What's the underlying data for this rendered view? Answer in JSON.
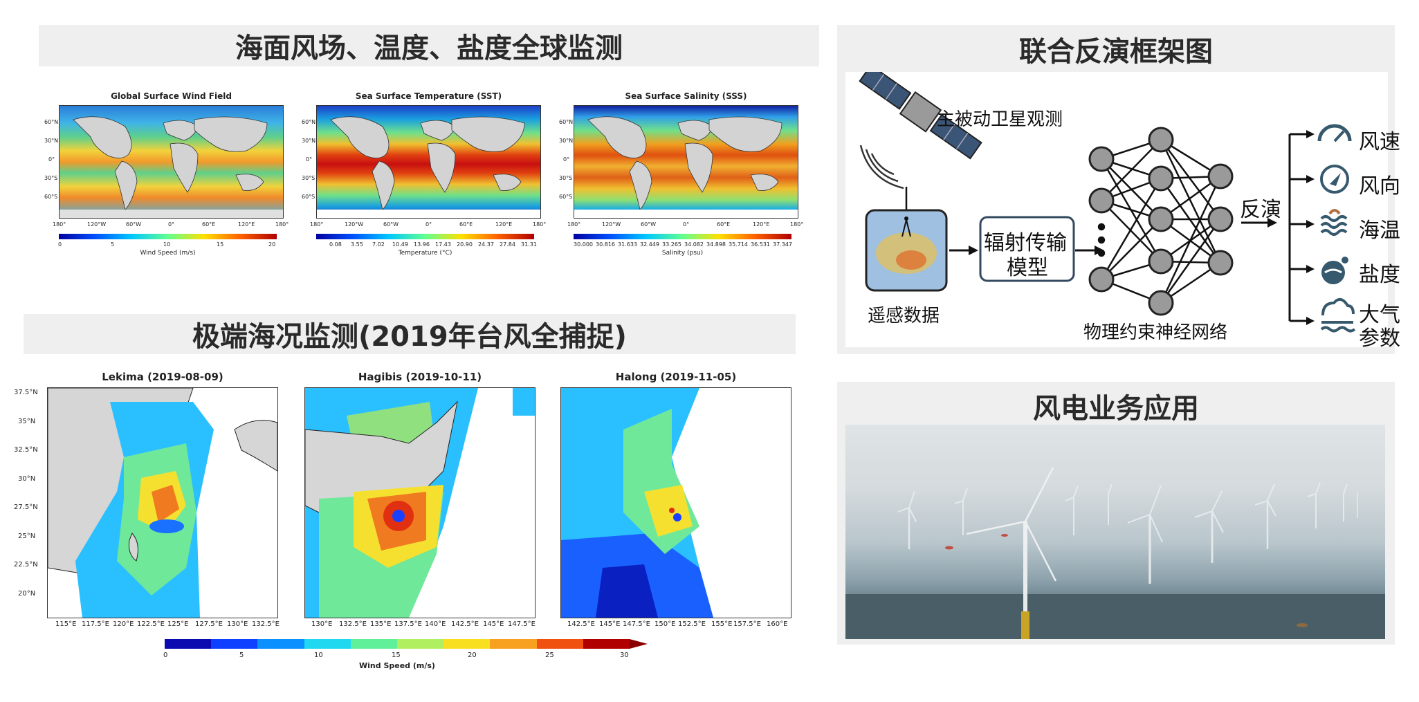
{
  "section_global": {
    "title": "海面风场、温度、盐度全球监测",
    "maps": [
      {
        "title": "Global Surface Wind Field",
        "colorbar_label": "Wind Speed (m/s)",
        "colorbar_ticks": [
          "0",
          "5",
          "10",
          "15",
          "20"
        ]
      },
      {
        "title": "Sea Surface Temperature (SST)",
        "colorbar_label": "Temperature (°C)",
        "colorbar_ticks": [
          "0.08",
          "3.55",
          "7.02",
          "10.49",
          "13.96",
          "17.43",
          "20.90",
          "24.37",
          "27.84",
          "31.31"
        ]
      },
      {
        "title": "Sea Surface Salinity (SSS)",
        "colorbar_label": "Salinity (psu)",
        "colorbar_ticks": [
          "30.000",
          "30.816",
          "31.633",
          "32.449",
          "33.265",
          "34.082",
          "34.898",
          "35.714",
          "36.531",
          "37.347"
        ]
      }
    ],
    "lat_ticks": [
      "60°N",
      "30°N",
      "0°",
      "30°S",
      "60°S"
    ],
    "lon_ticks": [
      "180°",
      "120°W",
      "60°W",
      "0°",
      "60°E",
      "120°E",
      "180°"
    ]
  },
  "section_typhoon": {
    "title": "极端海况监测(2019年台风全捕捉)",
    "lat_ticks": [
      "37.5°N",
      "35°N",
      "32.5°N",
      "30°N",
      "27.5°N",
      "25°N",
      "22.5°N",
      "20°N"
    ],
    "maps": [
      {
        "title": "Lekima (2019-08-09)",
        "lon_ticks": [
          "115°E",
          "117.5°E",
          "120°E",
          "122.5°E",
          "125°E",
          "127.5°E",
          "130°E",
          "132.5°E"
        ]
      },
      {
        "title": "Hagibis (2019-10-11)",
        "lon_ticks": [
          "130°E",
          "132.5°E",
          "135°E",
          "137.5°E",
          "140°E",
          "142.5°E",
          "145°E",
          "147.5°E"
        ]
      },
      {
        "title": "Halong (2019-11-05)",
        "lon_ticks": [
          "142.5°E",
          "145°E",
          "147.5°E",
          "150°E",
          "152.5°E",
          "155°E",
          "157.5°E",
          "160°E"
        ]
      }
    ],
    "colorbar_ticks": [
      "0",
      "5",
      "10",
      "15",
      "20",
      "25",
      "30"
    ],
    "colorbar_label": "Wind Speed (m/s)"
  },
  "section_framework": {
    "title": "联合反演框架图",
    "satellite_label": "主被动卫星观测",
    "remote_data_label": "遥感数据",
    "rt_model_label_1": "辐射传输",
    "rt_model_label_2": "模型",
    "nn_label": "物理约束神经网络",
    "inversion_label": "反演",
    "outputs": [
      {
        "label": "风速",
        "icon": "gauge-icon"
      },
      {
        "label": "风向",
        "icon": "compass-icon"
      },
      {
        "label": "海温",
        "icon": "sea-temp-icon"
      },
      {
        "label": "盐度",
        "icon": "salinity-icon"
      },
      {
        "label": "大气",
        "label2": "参数",
        "icon": "atmosphere-icon"
      }
    ]
  },
  "section_wind": {
    "title": "风电业务应用"
  }
}
